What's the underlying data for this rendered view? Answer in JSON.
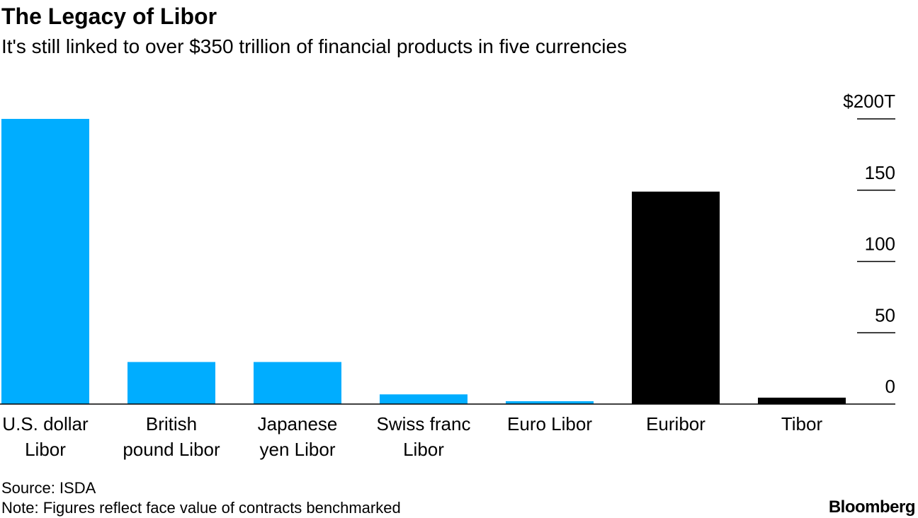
{
  "title": "The Legacy of Libor",
  "subtitle": "It's still linked to over $350 trillion of financial products in five currencies",
  "source": "Source: ISDA",
  "note": "Note: Figures reflect face value of contracts benchmarked",
  "brand": "Bloomberg",
  "chart_data": {
    "type": "bar",
    "categories": [
      [
        "U.S. dollar",
        "Libor"
      ],
      [
        "British",
        "pound Libor"
      ],
      [
        "Japanese",
        "yen Libor"
      ],
      [
        "Swiss franc",
        "Libor"
      ],
      [
        "Euro Libor"
      ],
      [
        "Euribor"
      ],
      [
        "Tibor"
      ]
    ],
    "values": [
      200,
      29.5,
      29.5,
      6.8,
      2,
      149,
      4.5
    ],
    "bar_colors": [
      "#00adff",
      "#00adff",
      "#00adff",
      "#00adff",
      "#00adff",
      "#000000",
      "#000000"
    ],
    "yticks": [
      0,
      50,
      100,
      150,
      200
    ],
    "ytick_labels": [
      "0",
      "50",
      "100",
      "150",
      "$200T"
    ],
    "ylim": [
      0,
      200
    ],
    "axis_position": "right",
    "grid": false
  }
}
